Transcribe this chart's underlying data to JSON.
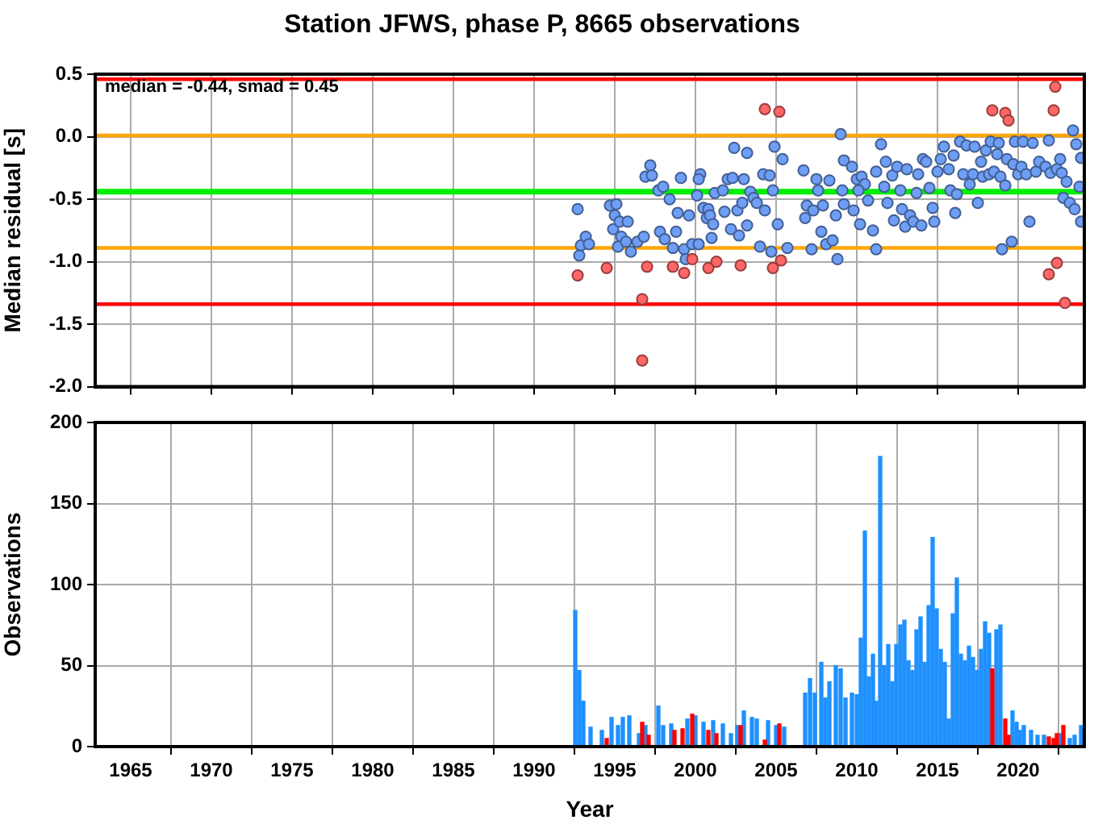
{
  "chart_data": [
    {
      "type": "scatter",
      "title": "Station JFWS, phase P, 8665 observations",
      "ylabel": "Median residual [s]",
      "annotations": [
        "median = -0.44, smad = 0.45"
      ],
      "xlim": [
        1962.8,
        2024.1
      ],
      "xticks": [
        1965,
        1970,
        1975,
        1980,
        1985,
        1990,
        1995,
        2000,
        2005,
        2010,
        2015,
        2020
      ],
      "ylim": [
        -2,
        0.5
      ],
      "yticks": [
        0.5,
        {
          "value": 0,
          "label": "0.0"
        },
        -0.5,
        {
          "value": -1,
          "label": "-1.0"
        },
        -1.5,
        {
          "value": -2,
          "label": "-2.0"
        }
      ],
      "tick_labels": "y",
      "grid": true,
      "marker": "circle",
      "ref_lines": [
        {
          "axis": "y",
          "value": 0.46,
          "color": "#ff0000"
        },
        {
          "axis": "y",
          "value": 0.01,
          "color": "#ffa500"
        },
        {
          "axis": "y",
          "value": -0.44,
          "color": "#00ee00"
        },
        {
          "axis": "y",
          "value": -0.89,
          "color": "#ffa500"
        },
        {
          "axis": "y",
          "value": -1.34,
          "color": "#ff0000"
        }
      ],
      "series": [
        {
          "color": "#6e9ef5",
          "x": [
            1992.7,
            1992.8,
            1992.9,
            1993.2,
            1993.4,
            1994.7,
            1995.1,
            1995,
            1994.9,
            1995.3,
            1995.4,
            1995.2,
            1995.7,
            1995.8,
            1996,
            1996.4,
            1996.8,
            1996.9,
            1997.2,
            1997.3,
            1997.7,
            1998,
            1997.8,
            1998.1,
            1998.4,
            1998.6,
            1998.9,
            1998.8,
            1999.1,
            1999.3,
            1999.4,
            1999.6,
            1999.8,
            2000.1,
            2000.2,
            2000.3,
            2000.2,
            2000.5,
            2000.8,
            2000.7,
            2000.9,
            2001.1,
            2001,
            2001.2,
            2001.7,
            2001.8,
            2002,
            2002.2,
            2002.3,
            2002.4,
            2002.6,
            2002.7,
            2002.9,
            2003,
            2003.2,
            2003.2,
            2003.4,
            2003.6,
            2003.8,
            2004,
            2004.2,
            2004.3,
            2004.6,
            2004.7,
            2004.8,
            2004.9,
            2005.1,
            2005.4,
            2005.7,
            2006.7,
            2006.8,
            2006.9,
            2007.2,
            2007.3,
            2007.5,
            2007.6,
            2007.8,
            2007.9,
            2008.1,
            2008.3,
            2008.5,
            2008.7,
            2008.8,
            2009,
            2009.2,
            2009.1,
            2009.2,
            2009.7,
            2010,
            2010.3,
            2010.5,
            2009.8,
            2010.2,
            2010.1,
            2010.7,
            2011,
            2011.2,
            2011.2,
            2011.5,
            2011.7,
            2011.8,
            2011.9,
            2012.2,
            2012.3,
            2012.5,
            2012.7,
            2012.8,
            2013,
            2013.1,
            2013.3,
            2013.5,
            2013.7,
            2013.8,
            2014,
            2014.1,
            2014.3,
            2014.5,
            2014.7,
            2014.8,
            2015,
            2015.2,
            2015.4,
            2015.7,
            2015.8,
            2016,
            2016.1,
            2016.2,
            2016.4,
            2016.6,
            2016.8,
            2017,
            2017.2,
            2017.3,
            2017.5,
            2017.7,
            2017.8,
            2018,
            2018.2,
            2018.3,
            2018.5,
            2018.7,
            2018.8,
            2018.9,
            2019,
            2019.2,
            2019.3,
            2019.6,
            2019.7,
            2019.8,
            2020,
            2020.2,
            2020.3,
            2020.5,
            2020.7,
            2020.9,
            2021.1,
            2021.3,
            2021.7,
            2021.9,
            2022,
            2022.4,
            2022.6,
            2022.7,
            2022.8,
            2023,
            2023.2,
            2023.4,
            2023.5,
            2023.6,
            2023.8,
            2023.9,
            2023.9
          ],
          "values": [
            -0.58,
            -0.95,
            -0.87,
            -0.8,
            -0.86,
            -0.55,
            -0.54,
            -0.63,
            -0.74,
            -0.68,
            -0.8,
            -0.88,
            -0.84,
            -0.68,
            -0.92,
            -0.84,
            -0.8,
            -0.32,
            -0.23,
            -0.31,
            -0.43,
            -0.4,
            -0.76,
            -0.82,
            -0.5,
            -0.89,
            -0.61,
            -0.76,
            -0.33,
            -0.9,
            -0.98,
            -0.63,
            -0.86,
            -0.47,
            -0.86,
            -0.3,
            -0.34,
            -0.57,
            -0.58,
            -0.65,
            -0.63,
            -0.7,
            -0.81,
            -0.45,
            -0.43,
            -0.6,
            -0.34,
            -0.74,
            -0.33,
            -0.09,
            -0.59,
            -0.79,
            -0.53,
            -0.34,
            -0.71,
            -0.13,
            -0.44,
            -0.49,
            -0.53,
            -0.88,
            -0.3,
            -0.59,
            -0.31,
            -0.92,
            -0.43,
            -0.08,
            -0.7,
            -0.18,
            -0.89,
            -0.27,
            -0.65,
            -0.55,
            -0.9,
            -0.59,
            -0.34,
            -0.43,
            -0.76,
            -0.55,
            -0.86,
            -0.35,
            -0.83,
            -0.63,
            -0.98,
            0.02,
            -0.19,
            -0.43,
            -0.54,
            -0.24,
            -0.34,
            -0.32,
            -0.38,
            -0.59,
            -0.7,
            -0.43,
            -0.51,
            -0.75,
            -0.9,
            -0.28,
            -0.06,
            -0.4,
            -0.2,
            -0.53,
            -0.31,
            -0.67,
            -0.24,
            -0.43,
            -0.58,
            -0.72,
            -0.26,
            -0.63,
            -0.68,
            -0.45,
            -0.3,
            -0.71,
            -0.18,
            -0.2,
            -0.41,
            -0.57,
            -0.68,
            -0.28,
            -0.18,
            -0.08,
            -0.26,
            -0.43,
            -0.15,
            -0.61,
            -0.46,
            -0.04,
            -0.3,
            -0.07,
            -0.38,
            -0.3,
            -0.08,
            -0.53,
            -0.2,
            -0.32,
            -0.11,
            -0.3,
            -0.04,
            -0.28,
            -0.14,
            -0.05,
            -0.32,
            -0.9,
            -0.39,
            -0.18,
            -0.84,
            -0.22,
            -0.04,
            -0.3,
            -0.24,
            -0.04,
            -0.3,
            -0.68,
            -0.05,
            -0.28,
            -0.2,
            -0.24,
            -0.03,
            -0.29,
            -0.26,
            -0.18,
            -0.29,
            -0.49,
            -0.36,
            -0.53,
            0.05,
            -0.58,
            -0.06,
            -0.4,
            -0.17,
            -0.68
          ]
        },
        {
          "color": "#ff6666",
          "x": [
            1992.7,
            1994.5,
            1997,
            1996.7,
            1996.7,
            1998.6,
            1999.3,
            1999.8,
            2000.8,
            2001.3,
            2002.8,
            2004.3,
            2005.2,
            2004.8,
            2005.3,
            2018.4,
            2019.2,
            2019.4,
            2022.3,
            2022.2,
            2022.4,
            2021.9,
            2022.9
          ],
          "values": [
            -1.11,
            -1.05,
            -1.04,
            -1.3,
            -1.79,
            -1.04,
            -1.09,
            -0.98,
            -1.05,
            -1,
            -1.03,
            0.22,
            0.2,
            -1.05,
            -0.99,
            0.21,
            0.19,
            0.13,
            0.4,
            0.21,
            -1.01,
            -1.1,
            -1.33
          ]
        }
      ]
    },
    {
      "type": "bar",
      "xlabel": "Year",
      "ylabel": "Observations",
      "xlim": [
        1962.8,
        2024.1
      ],
      "xticks": [
        1965,
        1970,
        1975,
        1980,
        1985,
        1990,
        1995,
        2000,
        2005,
        2010,
        2015,
        2020
      ],
      "ylim": [
        0,
        200
      ],
      "yticks": [
        0,
        50,
        100,
        150,
        200
      ],
      "grid": true,
      "series": [
        {
          "color": "#1e90ff",
          "x": [
            1992.55,
            1992.8,
            1993.05,
            1993.5,
            1994.2,
            1994.8,
            1995.2,
            1995.5,
            1995.9,
            1996.5,
            1996.9,
            1997.7,
            1998,
            1998.5,
            1999.5,
            2000,
            2000.5,
            2001.1,
            2001.7,
            2002.2,
            2002.6,
            2003,
            2003.5,
            2003.8,
            2004.5,
            2005,
            2005.5,
            2006.8,
            2007.1,
            2007.4,
            2007.8,
            2008.05,
            2008.3,
            2008.7,
            2009,
            2009.3,
            2009.7,
            2010,
            2010.25,
            2010.5,
            2010.75,
            2011,
            2011.2,
            2011.45,
            2011.7,
            2011.95,
            2012.2,
            2012.45,
            2012.7,
            2012.95,
            2013.2,
            2013.45,
            2013.7,
            2013.95,
            2014.2,
            2014.45,
            2014.7,
            2014.95,
            2015.2,
            2015.45,
            2015.7,
            2015.95,
            2016.2,
            2016.45,
            2016.7,
            2016.95,
            2017.2,
            2017.45,
            2017.7,
            2017.95,
            2018.2,
            2018.65,
            2018.9,
            2019.65,
            2019.9,
            2020.1,
            2020.35,
            2020.8,
            2021.2,
            2021.6,
            2022.65,
            2023.2,
            2023.5,
            2023.9
          ],
          "values": [
            84,
            47,
            28,
            12,
            10,
            18,
            13,
            18,
            19,
            8,
            13,
            25,
            13,
            14,
            17,
            19,
            15,
            16,
            14,
            8,
            13,
            22,
            18,
            17,
            16,
            13,
            12,
            33,
            42,
            33,
            52,
            30,
            40,
            50,
            48,
            30,
            33,
            32,
            67,
            133,
            43,
            57,
            28,
            179,
            50,
            63,
            40,
            63,
            75,
            78,
            53,
            47,
            72,
            80,
            52,
            87,
            129,
            85,
            60,
            52,
            17,
            82,
            104,
            57,
            53,
            62,
            55,
            47,
            60,
            77,
            70,
            72,
            75,
            22,
            15,
            10,
            13,
            10,
            7,
            7,
            8,
            5,
            7,
            13
          ]
        },
        {
          "color": "#ff0000",
          "x": [
            1994.5,
            1996.7,
            1997.1,
            1998.7,
            1999.2,
            1999.8,
            2000.8,
            2001.3,
            2002.8,
            2004.3,
            2005.2,
            2018.4,
            2019.2,
            2019.4,
            2021.9,
            2022.2,
            2022.4,
            2022.8
          ],
          "values": [
            5,
            15,
            7,
            10,
            11,
            20,
            10,
            8,
            13,
            4,
            14,
            48,
            17,
            7,
            6,
            5,
            8,
            13
          ]
        }
      ]
    }
  ]
}
